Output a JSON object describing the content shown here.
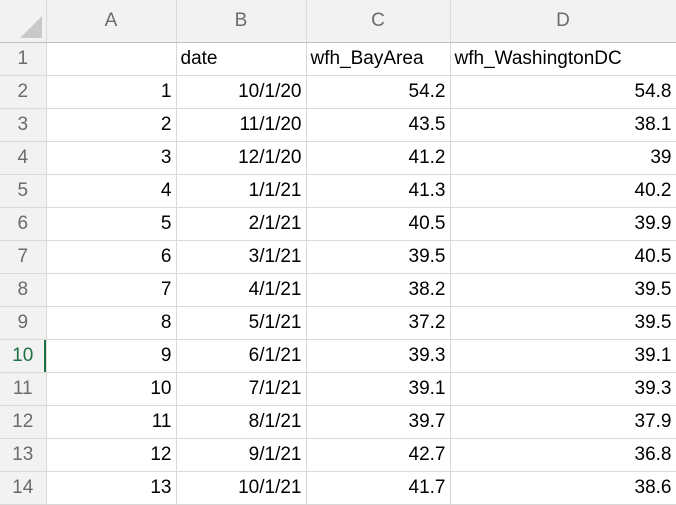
{
  "columns": [
    "A",
    "B",
    "C",
    "D"
  ],
  "row_numbers": [
    "1",
    "2",
    "3",
    "4",
    "5",
    "6",
    "7",
    "8",
    "9",
    "10",
    "11",
    "12",
    "13",
    "14"
  ],
  "active_row": "10",
  "header_row": [
    "",
    "date",
    "wfh_BayArea",
    "wfh_WashingtonDC"
  ],
  "rows": [
    [
      "1",
      "10/1/20",
      "54.2",
      "54.8"
    ],
    [
      "2",
      "11/1/20",
      "43.5",
      "38.1"
    ],
    [
      "3",
      "12/1/20",
      "41.2",
      "39"
    ],
    [
      "4",
      "1/1/21",
      "41.3",
      "40.2"
    ],
    [
      "5",
      "2/1/21",
      "40.5",
      "39.9"
    ],
    [
      "6",
      "3/1/21",
      "39.5",
      "40.5"
    ],
    [
      "7",
      "4/1/21",
      "38.2",
      "39.5"
    ],
    [
      "8",
      "5/1/21",
      "37.2",
      "39.5"
    ],
    [
      "9",
      "6/1/21",
      "39.3",
      "39.1"
    ],
    [
      "10",
      "7/1/21",
      "39.1",
      "39.3"
    ],
    [
      "11",
      "8/1/21",
      "39.7",
      "37.9"
    ],
    [
      "12",
      "9/1/21",
      "42.7",
      "36.8"
    ],
    [
      "13",
      "10/1/21",
      "41.7",
      "38.6"
    ]
  ],
  "colors": {
    "header_bg": "#f2f2f2",
    "gridline": "#d9d9d9",
    "active_row_accent": "#1e7145"
  }
}
